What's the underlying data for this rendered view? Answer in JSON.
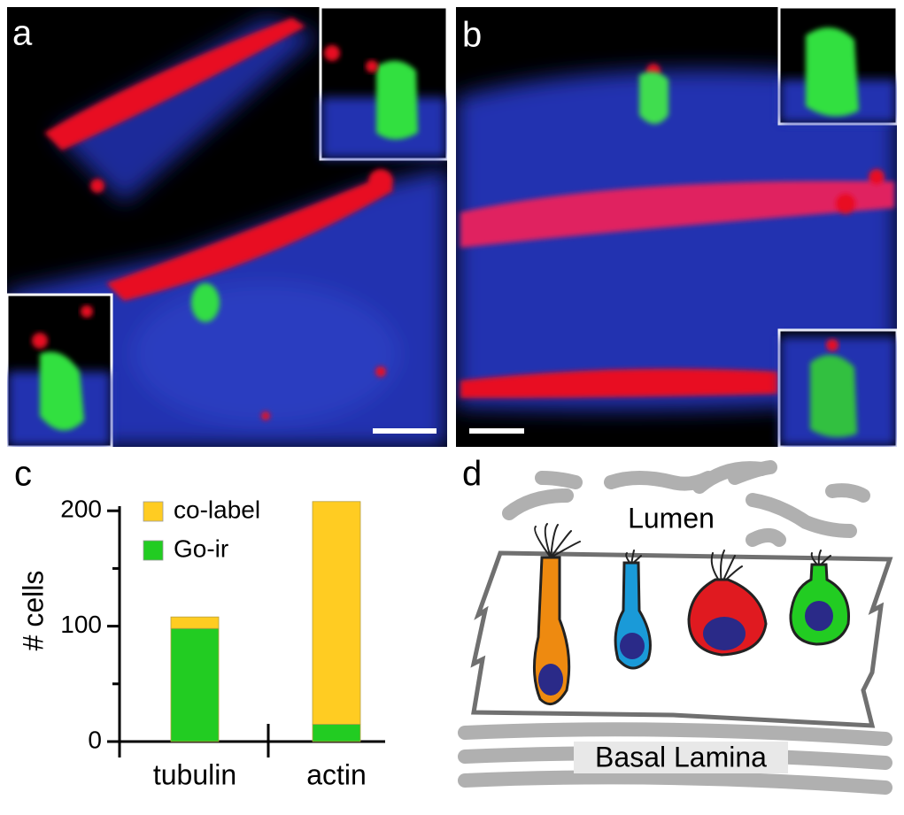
{
  "panels": {
    "a": "a",
    "b": "b",
    "c": "c",
    "d": "d"
  },
  "chart_data": {
    "type": "bar",
    "stacked": true,
    "ylabel": "# cells",
    "categories": [
      "tubulin",
      "actin"
    ],
    "series": [
      {
        "name": "Go-ir",
        "color": "#22cc22",
        "values": [
          98,
          15
        ]
      },
      {
        "name": "co-label",
        "color": "#ffcc22",
        "values": [
          10,
          193
        ]
      }
    ],
    "ylim": [
      0,
      204
    ],
    "yticks": [
      0,
      100,
      200
    ],
    "minor_yticks": [
      50,
      150
    ],
    "grid": false
  },
  "diagram": {
    "lumen": "Lumen",
    "basal_lamina": "Basal Lamina"
  }
}
